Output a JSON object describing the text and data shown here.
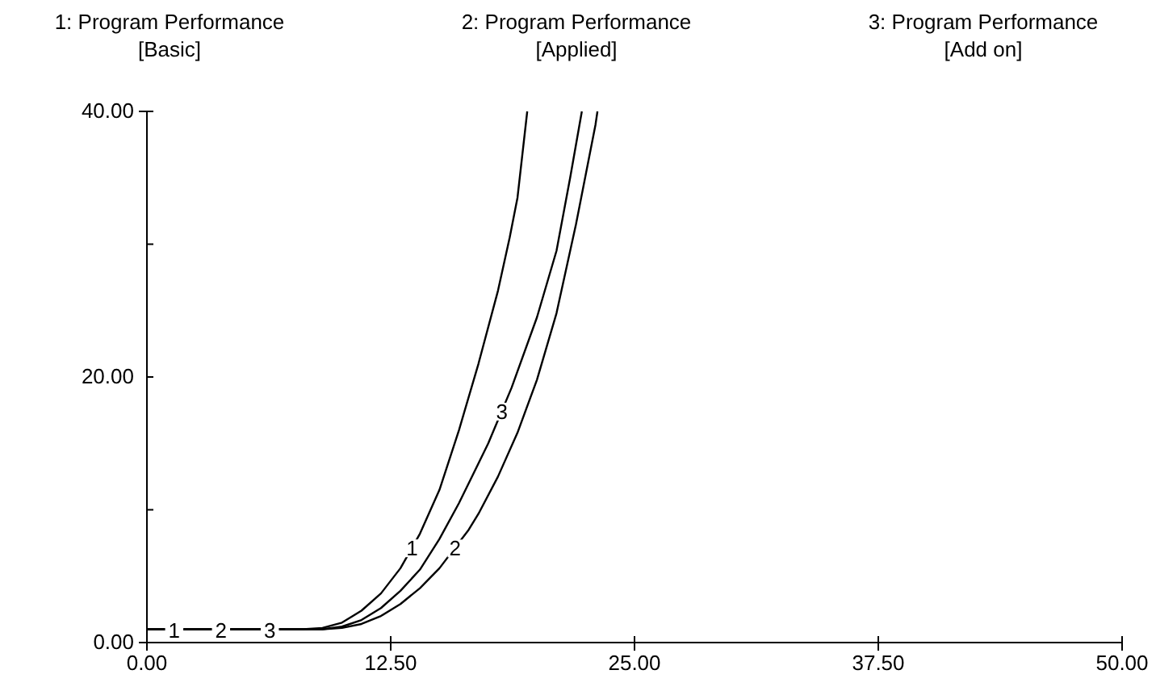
{
  "chart_data": {
    "type": "line",
    "xlim": [
      0,
      50
    ],
    "ylim": [
      0,
      40
    ],
    "xticks": [
      {
        "value": 0,
        "label": "0.00"
      },
      {
        "value": 12.5,
        "label": "12.50"
      },
      {
        "value": 25,
        "label": "25.00"
      },
      {
        "value": 37.5,
        "label": "37.50"
      },
      {
        "value": 50,
        "label": "50.00"
      }
    ],
    "yticks": [
      {
        "value": 0,
        "label": "0.00"
      },
      {
        "value": 10,
        "label": null
      },
      {
        "value": 20,
        "label": "20.00"
      },
      {
        "value": 30,
        "label": null
      },
      {
        "value": 40,
        "label": "40.00"
      }
    ],
    "grid": false,
    "marker": "none",
    "line_style": "solid",
    "series": [
      {
        "name": "1",
        "color": "#000000",
        "x": [
          0,
          8,
          9,
          10,
          11,
          12,
          13,
          14,
          15,
          16,
          17,
          18,
          18.6,
          19,
          19.5
        ],
        "values": [
          1,
          1,
          1.1,
          1.5,
          2.4,
          3.7,
          5.6,
          8.2,
          11.5,
          16,
          21,
          26.5,
          30.5,
          33.5,
          40
        ]
      },
      {
        "name": "2",
        "color": "#000000",
        "x": [
          0,
          9,
          10,
          11,
          12,
          13,
          14,
          15,
          16.5,
          17,
          18,
          19,
          20,
          21,
          22,
          23,
          23.1
        ],
        "values": [
          1,
          1,
          1.1,
          1.4,
          2,
          2.9,
          4.1,
          5.6,
          8.5,
          9.7,
          12.5,
          15.8,
          19.8,
          24.8,
          31.5,
          39,
          40
        ]
      },
      {
        "name": "3",
        "color": "#000000",
        "x": [
          0,
          9,
          10,
          11,
          12,
          13,
          14,
          15,
          16,
          17,
          17.5,
          18.7,
          20,
          21,
          21.7,
          22.3
        ],
        "values": [
          1,
          1,
          1.2,
          1.7,
          2.6,
          3.9,
          5.5,
          7.8,
          10.5,
          13.5,
          15,
          19.2,
          24.5,
          29.5,
          35,
          40
        ]
      }
    ],
    "annotations": [
      "1: Program Performance\n[Basic]",
      "2: Program Performance\n[Applied]",
      "3: Program Performance\n[Add on]",
      {
        "text": "1",
        "x": 1.4,
        "y": 1
      },
      {
        "text": "2",
        "x": 3.8,
        "y": 1
      },
      {
        "text": "3",
        "x": 6.3,
        "y": 1
      }
    ]
  }
}
